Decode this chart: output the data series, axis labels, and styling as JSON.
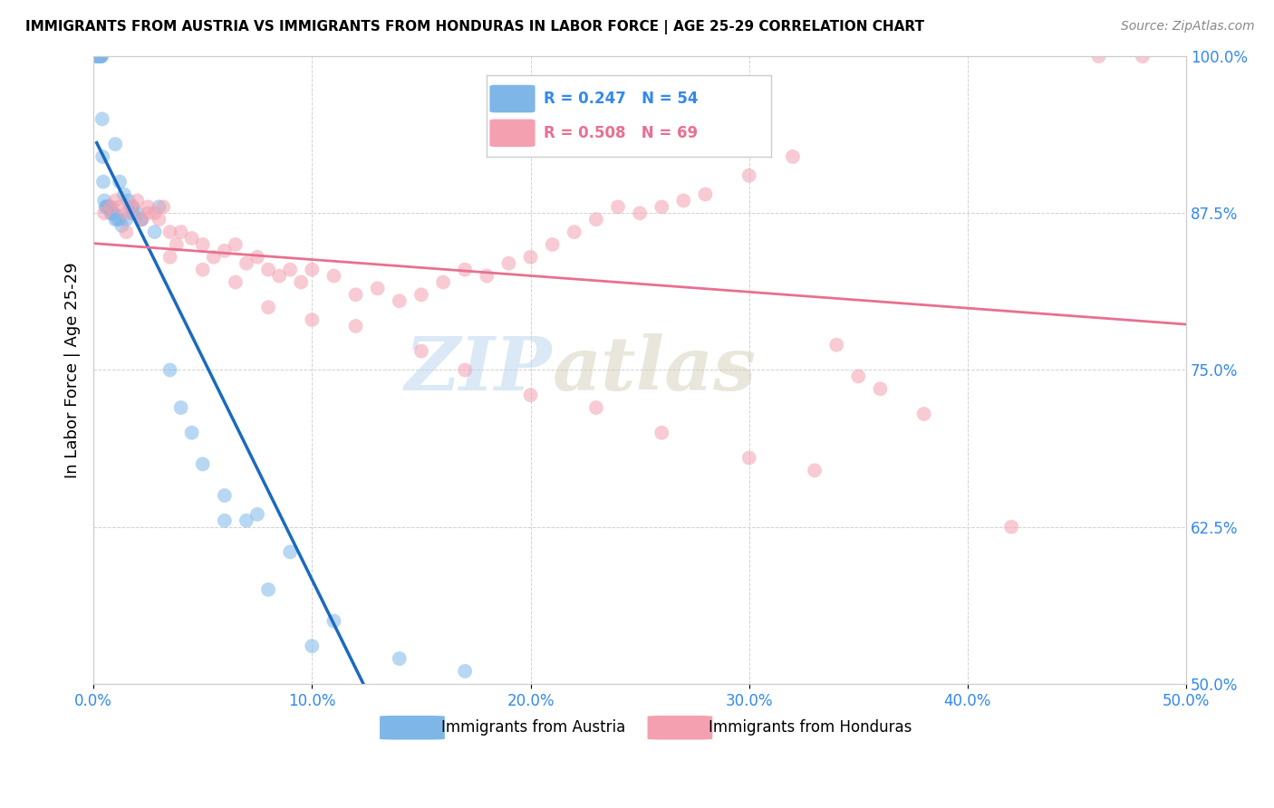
{
  "title": "IMMIGRANTS FROM AUSTRIA VS IMMIGRANTS FROM HONDURAS IN LABOR FORCE | AGE 25-29 CORRELATION CHART",
  "source": "Source: ZipAtlas.com",
  "ylabel": "In Labor Force | Age 25-29",
  "xlim": [
    0.0,
    50.0
  ],
  "ylim": [
    50.0,
    100.0
  ],
  "xticks": [
    0.0,
    10.0,
    20.0,
    30.0,
    40.0,
    50.0
  ],
  "yticks": [
    50.0,
    62.5,
    75.0,
    87.5,
    100.0
  ],
  "austria_color": "#7eb6e8",
  "honduras_color": "#f4a0b0",
  "austria_line_color": "#1a6abf",
  "honduras_line_color": "#e87090",
  "legend_R_austria": "0.247",
  "legend_N_austria": "54",
  "legend_R_honduras": "0.508",
  "legend_N_honduras": "69",
  "watermark_zip": "ZIP",
  "watermark_atlas": "atlas",
  "austria_x": [
    0.15,
    0.18,
    0.2,
    0.22,
    0.25,
    0.28,
    0.3,
    0.32,
    0.35,
    0.38,
    0.4,
    0.42,
    0.45,
    0.5,
    0.55,
    0.6,
    0.65,
    0.7,
    0.75,
    0.8,
    0.85,
    0.9,
    0.95,
    1.0,
    1.1,
    1.2,
    1.3,
    1.5,
    1.8,
    2.2,
    2.8,
    3.5,
    4.5,
    6.0,
    7.5,
    9.0,
    11.0,
    14.0,
    17.0,
    1.0,
    1.2,
    1.4,
    1.6,
    1.7,
    1.8,
    2.0,
    2.2,
    5.0,
    7.0,
    3.0,
    4.0,
    6.0,
    8.0,
    10.0
  ],
  "austria_y": [
    100.0,
    100.0,
    100.0,
    100.0,
    100.0,
    100.0,
    100.0,
    100.0,
    100.0,
    100.0,
    95.0,
    92.0,
    90.0,
    88.5,
    88.0,
    88.0,
    88.0,
    88.0,
    88.0,
    87.5,
    87.5,
    87.5,
    87.5,
    87.0,
    87.0,
    87.0,
    86.5,
    87.0,
    87.5,
    87.0,
    86.0,
    75.0,
    70.0,
    65.0,
    63.5,
    60.5,
    55.0,
    52.0,
    51.0,
    93.0,
    90.0,
    89.0,
    88.5,
    88.0,
    88.0,
    87.5,
    87.0,
    67.5,
    63.0,
    88.0,
    72.0,
    63.0,
    57.5,
    53.0
  ],
  "honduras_x": [
    0.5,
    0.8,
    1.0,
    1.2,
    1.5,
    1.8,
    2.0,
    2.2,
    2.5,
    2.8,
    3.0,
    3.2,
    3.5,
    3.8,
    4.0,
    4.5,
    5.0,
    5.5,
    6.0,
    6.5,
    7.0,
    7.5,
    8.0,
    8.5,
    9.0,
    9.5,
    10.0,
    11.0,
    12.0,
    13.0,
    14.0,
    15.0,
    16.0,
    17.0,
    18.0,
    19.0,
    20.0,
    21.0,
    22.0,
    23.0,
    24.0,
    25.0,
    26.0,
    27.0,
    28.0,
    30.0,
    32.0,
    34.0,
    1.5,
    2.5,
    3.5,
    5.0,
    6.5,
    8.0,
    10.0,
    12.0,
    15.0,
    17.0,
    20.0,
    23.0,
    26.0,
    30.0,
    33.0,
    36.0,
    38.0,
    42.0,
    46.0,
    48.0,
    35.0
  ],
  "honduras_y": [
    87.5,
    88.0,
    88.5,
    88.0,
    87.5,
    88.0,
    88.5,
    87.0,
    88.0,
    87.5,
    87.0,
    88.0,
    86.0,
    85.0,
    86.0,
    85.5,
    85.0,
    84.0,
    84.5,
    85.0,
    83.5,
    84.0,
    83.0,
    82.5,
    83.0,
    82.0,
    83.0,
    82.5,
    81.0,
    81.5,
    80.5,
    81.0,
    82.0,
    83.0,
    82.5,
    83.5,
    84.0,
    85.0,
    86.0,
    87.0,
    88.0,
    87.5,
    88.0,
    88.5,
    89.0,
    90.5,
    92.0,
    77.0,
    86.0,
    87.5,
    84.0,
    83.0,
    82.0,
    80.0,
    79.0,
    78.5,
    76.5,
    75.0,
    73.0,
    72.0,
    70.0,
    68.0,
    67.0,
    73.5,
    71.5,
    62.5,
    100.0,
    100.0,
    74.5
  ]
}
